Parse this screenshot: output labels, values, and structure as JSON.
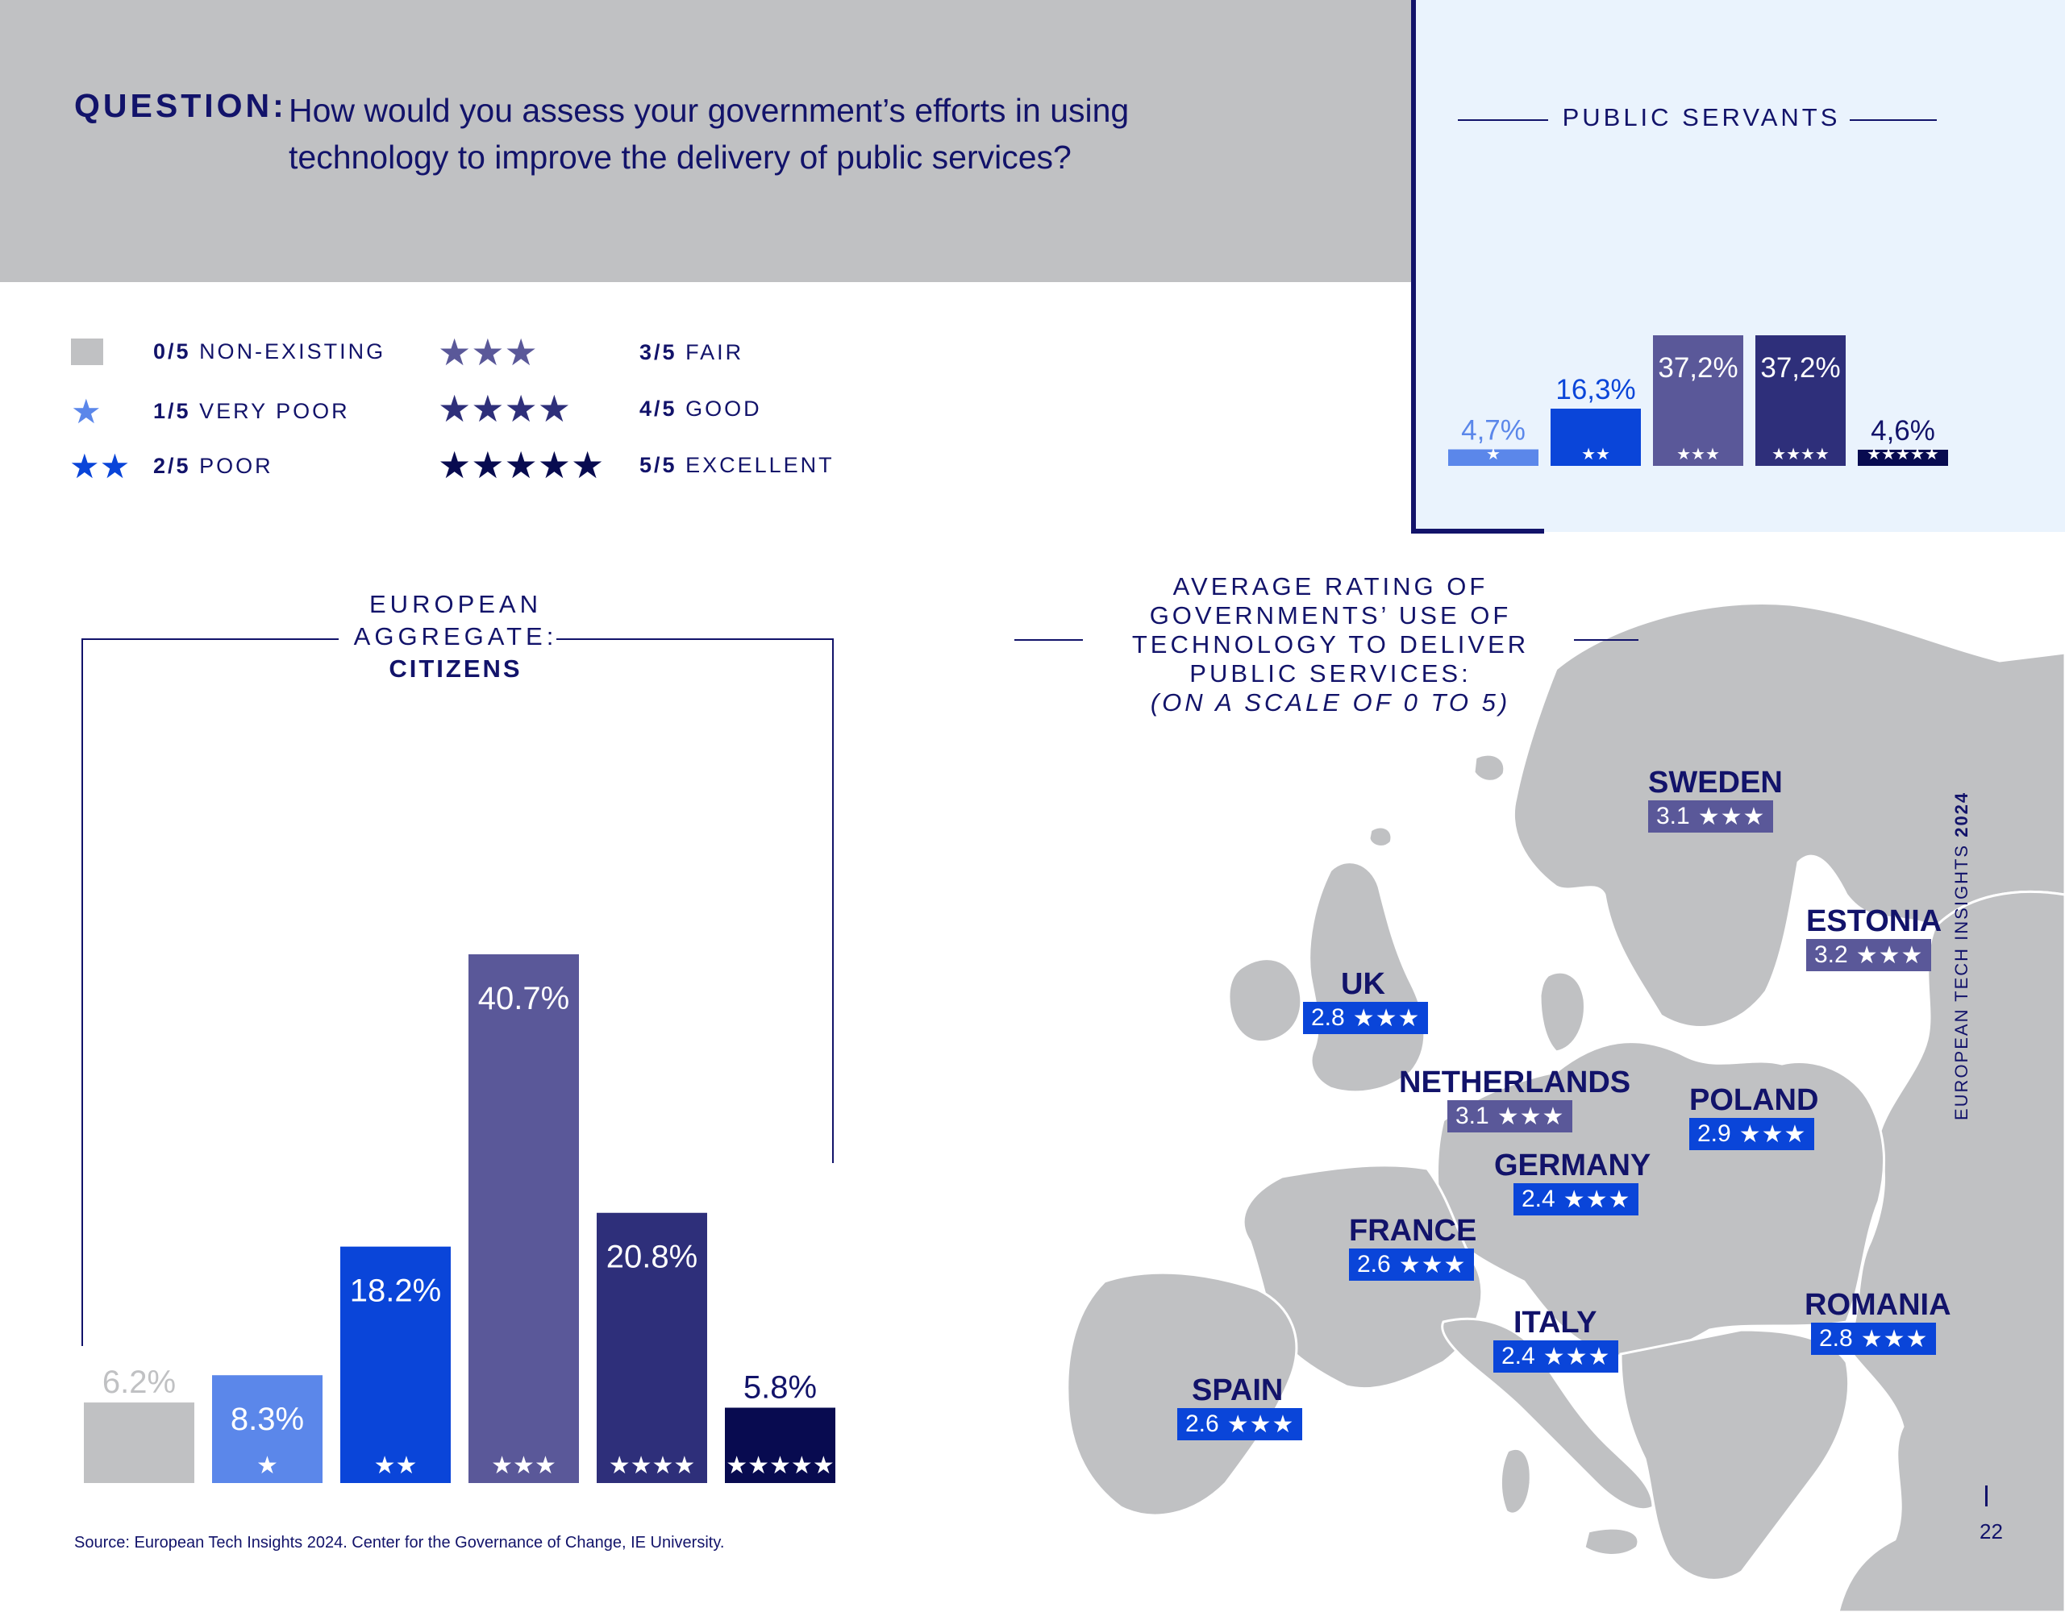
{
  "header": {
    "question_label": "QUESTION:",
    "question_text": "How would you assess your government’s efforts in using technology to improve the delivery of public services?"
  },
  "legend": {
    "items": [
      {
        "code": "0/5",
        "label": "NON-EXISTING",
        "stars": 0,
        "color": "#c0c1c3"
      },
      {
        "code": "1/5",
        "label": "VERY POOR",
        "stars": 1,
        "color": "#5b87ea"
      },
      {
        "code": "2/5",
        "label": "POOR",
        "stars": 2,
        "color": "#0a45d9"
      },
      {
        "code": "3/5",
        "label": "FAIR",
        "stars": 3,
        "color": "#5a5899"
      },
      {
        "code": "4/5",
        "label": "GOOD",
        "stars": 4,
        "color": "#2e2f7a"
      },
      {
        "code": "5/5",
        "label": "EXCELLENT",
        "stars": 5,
        "color": "#080b50"
      }
    ]
  },
  "public_servants": {
    "title": "PUBLIC SERVANTS"
  },
  "citizens": {
    "title_line1": "EUROPEAN",
    "title_line2": "AGGREGATE:",
    "title_line3": "CITIZENS"
  },
  "map": {
    "title_lines": [
      "AVERAGE RATING OF",
      "GOVERNMENTS’ USE OF",
      "TECHNOLOGY TO DELIVER",
      "PUBLIC SERVICES:"
    ],
    "title_scale": "(ON A SCALE OF 0 TO 5)",
    "countries": [
      {
        "name": "SWEDEN",
        "rating": "3.1",
        "stars": "★★★",
        "color": "#5a5899"
      },
      {
        "name": "ESTONIA",
        "rating": "3.2",
        "stars": "★★★",
        "color": "#5a5899"
      },
      {
        "name": "UK",
        "rating": "2.8",
        "stars": "★★★",
        "color": "#0a45d9"
      },
      {
        "name": "NETHERLANDS",
        "rating": "3.1",
        "stars": "★★★",
        "color": "#5a5899"
      },
      {
        "name": "POLAND",
        "rating": "2.9",
        "stars": "★★★",
        "color": "#0a45d9"
      },
      {
        "name": "GERMANY",
        "rating": "2.4",
        "stars": "★★★",
        "color": "#0a45d9"
      },
      {
        "name": "FRANCE",
        "rating": "2.6",
        "stars": "★★★",
        "color": "#0a45d9"
      },
      {
        "name": "ITALY",
        "rating": "2.4",
        "stars": "★★★",
        "color": "#0a45d9"
      },
      {
        "name": "ROMANIA",
        "rating": "2.8",
        "stars": "★★★",
        "color": "#0a45d9"
      },
      {
        "name": "SPAIN",
        "rating": "2.6",
        "stars": "★★★",
        "color": "#0a45d9"
      }
    ]
  },
  "footer": {
    "source": "Source: European Tech Insights 2024. Center for the Governance of Change, IE University.",
    "side_text_regular": "EUROPEAN TECH INSIGHTS ",
    "side_text_bold": "2024",
    "page_number": "22"
  },
  "chart_data": [
    {
      "type": "bar",
      "title": "PUBLIC SERVANTS",
      "categories": [
        "★",
        "★★",
        "★★★",
        "★★★★",
        "★★★★★"
      ],
      "values": [
        4.7,
        16.3,
        37.2,
        37.2,
        4.6
      ],
      "value_labels": [
        "4,7%",
        "16,3%",
        "37,2%",
        "37,2%",
        "4,6%"
      ],
      "colors": [
        "#5b87ea",
        "#0a45d9",
        "#5a5899",
        "#2e2f7a",
        "#080b50"
      ],
      "ylim": [
        0,
        37.2
      ]
    },
    {
      "type": "bar",
      "title": "EUROPEAN AGGREGATE: CITIZENS",
      "categories": [
        "",
        "★",
        "★★",
        "★★★",
        "★★★★",
        "★★★★★"
      ],
      "values": [
        6.2,
        8.3,
        18.2,
        40.7,
        20.8,
        5.8
      ],
      "value_labels": [
        "6.2%",
        "8.3%",
        "18.2%",
        "40.7%",
        "20.8%",
        "5.8%"
      ],
      "colors": [
        "#c0c1c3",
        "#5b87ea",
        "#0a45d9",
        "#5a5899",
        "#2e2f7a",
        "#080b50"
      ],
      "ylim": [
        0,
        40.7
      ]
    }
  ]
}
